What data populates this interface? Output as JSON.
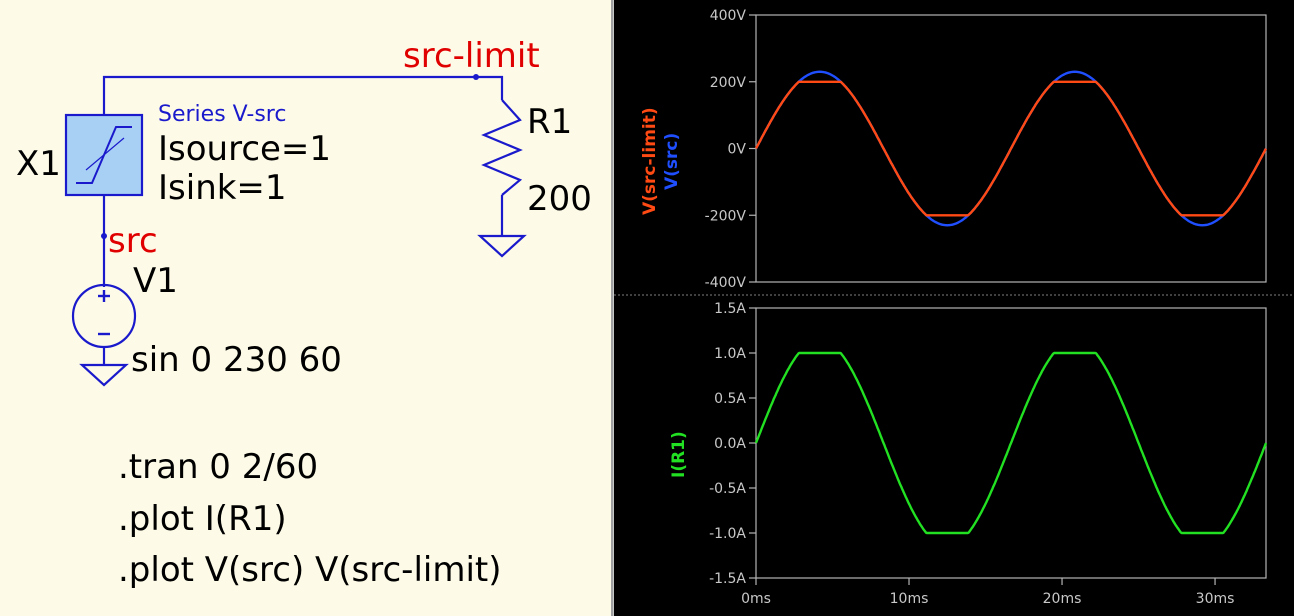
{
  "schematic": {
    "net_top": "src-limit",
    "net_src": "src",
    "x1_ref": "X1",
    "x1_type": "Series V-src",
    "x1_param1": "Isource=1",
    "x1_param2": "Isink=1",
    "r1_ref": "R1",
    "r1_value": "200",
    "v1_ref": "V1",
    "v1_value": "sin 0 230 60",
    "directives": [
      ".tran 0 2/60",
      ".plot I(R1)",
      ".plot V(src) V(src-limit)"
    ]
  },
  "colors": {
    "v_src": "#1f4fff",
    "v_src_limit": "#ff4a14",
    "i_r1": "#22e022",
    "wire": "#1a1acc",
    "net_label": "#e00000",
    "axis": "#b4b4b4",
    "grid": "#808080",
    "box_fill": "#a8d0f4"
  },
  "chart_data": [
    {
      "type": "line",
      "title": "",
      "xlabel": "",
      "ylabel": "",
      "xlim": [
        0,
        33.33
      ],
      "ylim": [
        -400,
        400
      ],
      "x_ticks": [
        0,
        10,
        20,
        30
      ],
      "x_tick_labels": [
        "0ms",
        "10ms",
        "20ms",
        "30ms"
      ],
      "y_ticks": [
        -400,
        -200,
        0,
        200,
        400
      ],
      "y_tick_labels": [
        "-400V",
        "-200V",
        "0V",
        "200V",
        "400V"
      ],
      "legend": [
        "V(src-limit)",
        "V(src)"
      ],
      "grid": false,
      "series": [
        {
          "name": "V(src)",
          "color": "#1f4fff",
          "function": "sin",
          "amplitude": 230,
          "frequency_hz": 60,
          "clip": null
        },
        {
          "name": "V(src-limit)",
          "color": "#ff4a14",
          "function": "sin",
          "amplitude": 230,
          "frequency_hz": 60,
          "clip": 200
        }
      ]
    },
    {
      "type": "line",
      "title": "",
      "xlabel": "",
      "ylabel": "",
      "xlim": [
        0,
        33.33
      ],
      "ylim": [
        -1.5,
        1.5
      ],
      "x_ticks": [
        0,
        10,
        20,
        30
      ],
      "x_tick_labels": [
        "0ms",
        "10ms",
        "20ms",
        "30ms"
      ],
      "y_ticks": [
        -1.5,
        -1.0,
        -0.5,
        0,
        0.5,
        1.0,
        1.5
      ],
      "y_tick_labels": [
        "-1.5A",
        "-1.0A",
        "-0.5A",
        "0.0A",
        "0.5A",
        "1.0A",
        "1.5A"
      ],
      "legend": [
        "I(R1)"
      ],
      "grid": false,
      "series": [
        {
          "name": "I(R1)",
          "color": "#22e022",
          "function": "sin",
          "amplitude": 1.15,
          "frequency_hz": 60,
          "clip": 1.0
        }
      ]
    }
  ]
}
